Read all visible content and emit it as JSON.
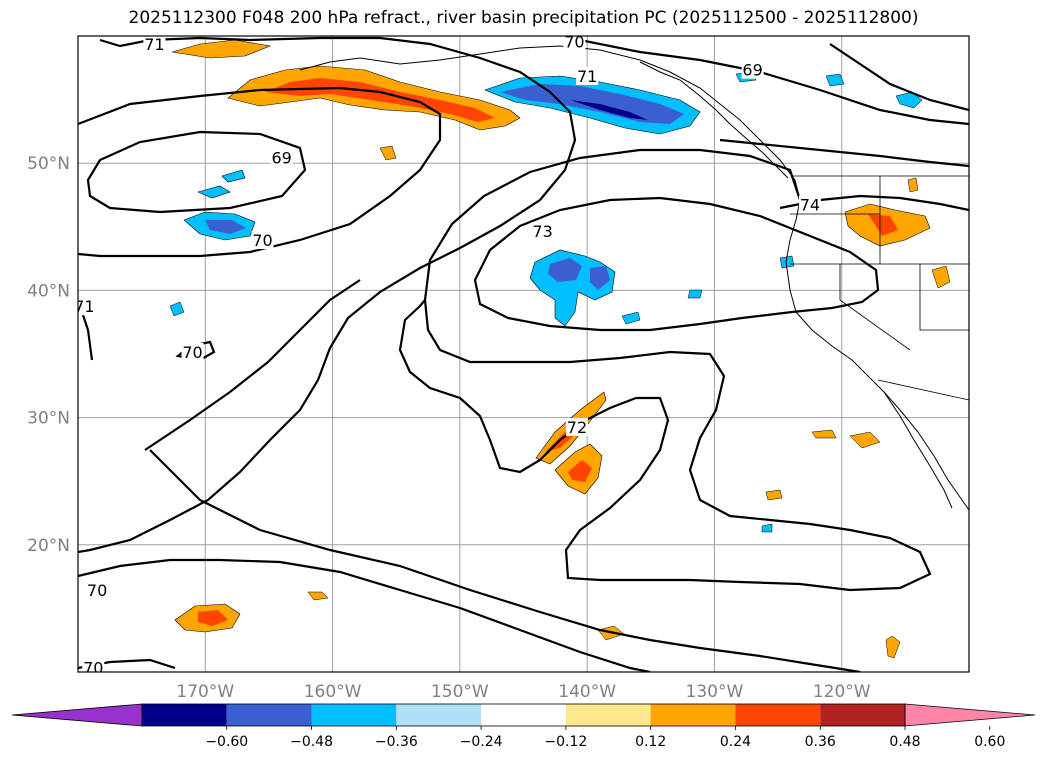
{
  "title": "2025112300 F048 200 hPa refract., river basin precipitation PC (2025112500 - 2025112800)",
  "map": {
    "lon_range": [
      -180,
      -110
    ],
    "lat_range": [
      10,
      60
    ],
    "lat_ticks": [
      {
        "value": 20,
        "label": "20°N"
      },
      {
        "value": 30,
        "label": "30°N"
      },
      {
        "value": 40,
        "label": "40°N"
      },
      {
        "value": 50,
        "label": "50°N"
      }
    ],
    "lon_ticks": [
      {
        "value": -170,
        "label": "170°W"
      },
      {
        "value": -160,
        "label": "160°W"
      },
      {
        "value": -150,
        "label": "150°W"
      },
      {
        "value": -140,
        "label": "140°W"
      },
      {
        "value": -130,
        "label": "130°W"
      },
      {
        "value": -120,
        "label": "120°W"
      }
    ],
    "grid": true,
    "contour_labels": [
      {
        "text": "71",
        "lon": -174.0,
        "lat": 59.2
      },
      {
        "text": "70",
        "lon": -141.0,
        "lat": 59.4
      },
      {
        "text": "69",
        "lon": -127.0,
        "lat": 57.2
      },
      {
        "text": "71",
        "lon": -140.0,
        "lat": 56.7
      },
      {
        "text": "69",
        "lon": -164.0,
        "lat": 50.3
      },
      {
        "text": "70",
        "lon": -165.5,
        "lat": 43.8
      },
      {
        "text": "73",
        "lon": -143.5,
        "lat": 44.5
      },
      {
        "text": "74",
        "lon": -122.5,
        "lat": 46.6
      },
      {
        "text": "71",
        "lon": -179.5,
        "lat": 38.6
      },
      {
        "text": "70",
        "lon": -171.0,
        "lat": 35.0
      },
      {
        "text": "72",
        "lon": -140.8,
        "lat": 29.1
      },
      {
        "text": "70",
        "lon": -178.5,
        "lat": 16.3
      },
      {
        "text": "70",
        "lon": -178.8,
        "lat": 10.2
      }
    ]
  },
  "colorbar": {
    "colors": [
      "#9932cc",
      "#00008b",
      "#3b5fd0",
      "#00bfff",
      "#b0e0f8",
      "#ffffff",
      "#fde98b",
      "#ffa500",
      "#ff4500",
      "#b22222",
      "#ff85a8"
    ],
    "labels": [
      "−0.60",
      "−0.48",
      "−0.36",
      "−0.24",
      "−0.12",
      "0.12",
      "0.24",
      "0.36",
      "0.48",
      "0.60"
    ]
  }
}
